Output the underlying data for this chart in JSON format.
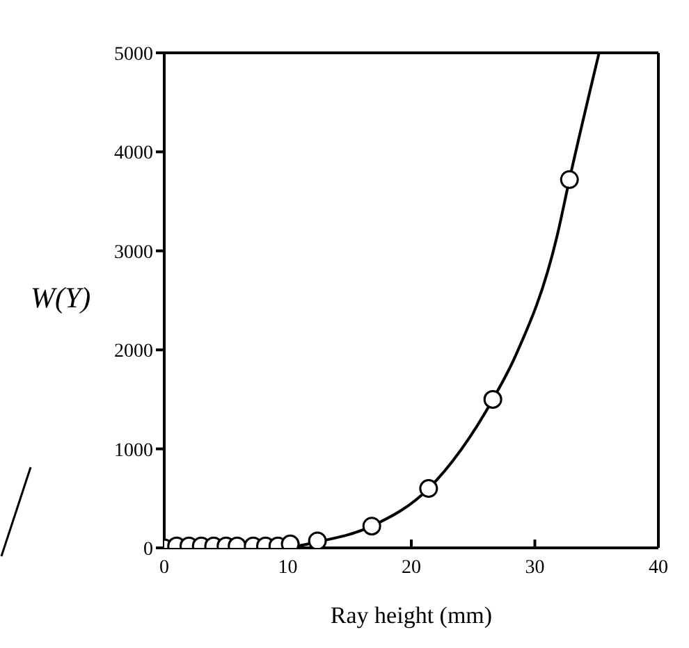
{
  "chart_data": {
    "type": "scatter",
    "xlabel": "Ray height (mm)",
    "ylabel": "W(Y)",
    "xlim": [
      0,
      40
    ],
    "xticks": [
      0,
      10,
      20,
      30,
      40
    ],
    "ylim": [
      0,
      5000
    ],
    "yticks": [
      0,
      1000,
      2000,
      3000,
      4000,
      5000
    ],
    "legend": false,
    "series": [
      {
        "type": "line",
        "color": "#000000",
        "marker": "none",
        "x": [
          10,
          12.4,
          16.8,
          21.4,
          26.6,
          28.4,
          31.8,
          32.8,
          35.2
        ],
        "values": [
          0,
          60,
          220,
          600,
          1500,
          1930,
          3150,
          3720,
          5000
        ]
      },
      {
        "color": "#000000",
        "marker": "circle",
        "x": [
          0,
          1,
          2,
          3,
          4,
          5,
          5.9,
          7.2,
          8.2,
          9.2,
          10.2,
          12.4,
          16.8,
          21.4,
          26.6,
          32.8
        ],
        "values": [
          0,
          20,
          20,
          20,
          20,
          20,
          20,
          20,
          20,
          20,
          40,
          70,
          220,
          600,
          1500,
          3720
        ]
      }
    ]
  }
}
